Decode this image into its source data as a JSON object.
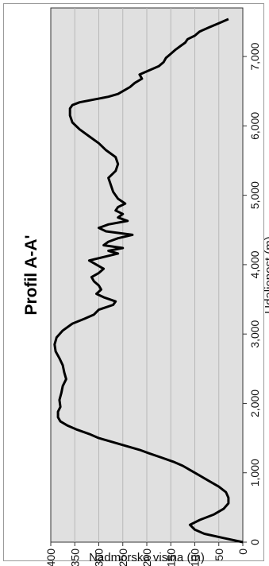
{
  "chart_data": {
    "type": "line",
    "title": "Profil A-A'",
    "xlabel": "Udaljenost (m)",
    "ylabel": "Nadmorska visina (m)",
    "xlim": [
      0,
      7700
    ],
    "ylim": [
      0,
      400
    ],
    "grid": true,
    "x_ticks": [
      0,
      1000,
      2000,
      3000,
      4000,
      5000,
      6000,
      7000
    ],
    "x_tick_labels": [
      "0",
      "1,000",
      "2,000",
      "3,000",
      "4,000",
      "5,000",
      "6,000",
      "7,000"
    ],
    "y_ticks": [
      0,
      50,
      100,
      150,
      200,
      250,
      300,
      350,
      400
    ],
    "y_tick_labels": [
      "0",
      "50",
      "100",
      "150",
      "200",
      "250",
      "300",
      "350",
      "400"
    ],
    "series": [
      {
        "x": [
          0,
          60,
          120,
          180,
          250,
          320,
          400,
          480,
          560,
          640,
          720,
          800,
          880,
          960,
          1040,
          1100,
          1160,
          1220,
          1280,
          1330,
          1380,
          1420,
          1460,
          1500,
          1560,
          1620,
          1680,
          1740,
          1800,
          1880,
          1950,
          2050,
          2150,
          2250,
          2350,
          2450,
          2550,
          2650,
          2750,
          2850,
          2950,
          3050,
          3150,
          3220,
          3280,
          3350,
          3420,
          3470,
          3530,
          3580,
          3640,
          3700,
          3760,
          3820,
          3880,
          3940,
          4000,
          4060,
          4110,
          4160,
          4200,
          4240,
          4280,
          4330,
          4380,
          4430,
          4480,
          4530,
          4580,
          4630,
          4680,
          4730,
          4780,
          4830,
          4880,
          4950,
          5050,
          5150,
          5250,
          5350,
          5450,
          5550,
          5650,
          5750,
          5850,
          5950,
          6050,
          6150,
          6250,
          6300,
          6340,
          6380,
          6420,
          6460,
          6500,
          6560,
          6620,
          6680,
          6740,
          6800,
          6860,
          6920,
          6980,
          7040,
          7100,
          7150,
          7200,
          7250,
          7300,
          7360,
          7420,
          7480,
          7540
        ],
        "y": [
          0,
          40,
          80,
          100,
          110,
          90,
          60,
          40,
          30,
          30,
          35,
          50,
          70,
          90,
          110,
          125,
          145,
          170,
          195,
          215,
          240,
          260,
          280,
          300,
          320,
          345,
          365,
          380,
          385,
          385,
          380,
          382,
          378,
          375,
          368,
          372,
          375,
          382,
          390,
          392,
          388,
          375,
          355,
          330,
          310,
          300,
          270,
          265,
          290,
          305,
          295,
          300,
          310,
          315,
          300,
          290,
          305,
          320,
          290,
          260,
          280,
          250,
          290,
          280,
          260,
          230,
          285,
          300,
          280,
          240,
          260,
          250,
          265,
          260,
          245,
          260,
          270,
          275,
          280,
          265,
          260,
          265,
          285,
          300,
          320,
          340,
          355,
          360,
          360,
          355,
          340,
          310,
          280,
          260,
          250,
          235,
          225,
          210,
          215,
          195,
          175,
          165,
          160,
          150,
          140,
          130,
          120,
          115,
          100,
          90,
          70,
          50,
          30
        ]
      }
    ]
  }
}
